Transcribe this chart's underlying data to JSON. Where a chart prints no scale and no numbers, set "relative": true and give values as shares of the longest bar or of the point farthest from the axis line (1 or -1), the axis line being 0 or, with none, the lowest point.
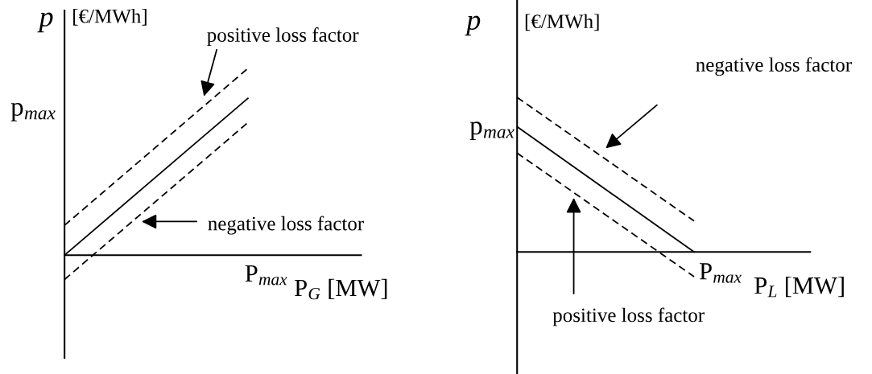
{
  "chart_data": [
    {
      "type": "line",
      "relative": true,
      "categories": [
        null,
        null
      ],
      "ylabel": "p",
      "xlabel": "P$_{G}$ [MW]",
      "annotations": [
        "[€/MWh]",
        "p$_{max}$",
        "P$_{max}$",
        "positive loss factor",
        "negative loss factor"
      ],
      "grid": false,
      "legend": false,
      "series": [
        {
          "color": "#000000",
          "line_style": "solid",
          "values": [
            0,
            0.84
          ]
        },
        {
          "color": "#000000",
          "line_style": "dashed",
          "values": [
            0.16,
            1
          ]
        },
        {
          "color": "#000000",
          "line_style": "dashed",
          "values": [
            -0.13,
            0.71
          ]
        }
      ]
    },
    {
      "type": "line",
      "relative": true,
      "categories": [
        null,
        null
      ],
      "ylabel": "p",
      "xlabel": "P$_{L}$ [MW]",
      "annotations": [
        "[€/MWh]",
        "p$_{max}$",
        "P$_{max}$",
        "negative loss factor",
        "positive loss factor"
      ],
      "grid": false,
      "legend": false,
      "series": [
        {
          "color": "#000000",
          "line_style": "solid",
          "values": [
            0.81,
            0
          ]
        },
        {
          "color": "#000000",
          "line_style": "dashed",
          "values": [
            1,
            0.2
          ]
        },
        {
          "color": "#000000",
          "line_style": "dashed",
          "values": [
            0.64,
            -0.16
          ]
        }
      ]
    }
  ]
}
